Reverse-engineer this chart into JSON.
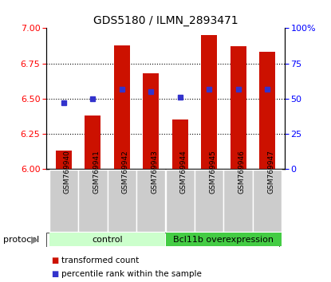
{
  "title": "GDS5180 / ILMN_2893471",
  "samples": [
    "GSM769940",
    "GSM769941",
    "GSM769942",
    "GSM769943",
    "GSM769944",
    "GSM769945",
    "GSM769946",
    "GSM769947"
  ],
  "bar_heights": [
    6.13,
    6.38,
    6.88,
    6.68,
    6.35,
    6.95,
    6.87,
    6.83
  ],
  "blue_y": [
    6.47,
    6.5,
    6.57,
    6.55,
    6.51,
    6.57,
    6.57,
    6.57
  ],
  "bar_bottom": 6.0,
  "ylim_left": [
    6.0,
    7.0
  ],
  "ylim_right": [
    0,
    100
  ],
  "yticks_left": [
    6.0,
    6.25,
    6.5,
    6.75,
    7.0
  ],
  "yticks_right": [
    0,
    25,
    50,
    75,
    100
  ],
  "bar_color": "#cc1100",
  "blue_color": "#3333cc",
  "group1_label": "control",
  "group2_label": "Bcl11b overexpression",
  "group1_color": "#ccffcc",
  "group2_color": "#44cc44",
  "protocol_label": "protocol",
  "legend_red": "transformed count",
  "legend_blue": "percentile rank within the sample",
  "background_color": "#ffffff",
  "grid_color": "#000000",
  "bar_width": 0.55,
  "group1_indices": [
    0,
    1,
    2,
    3
  ],
  "group2_indices": [
    4,
    5,
    6,
    7
  ],
  "xlabelbox_color": "#cccccc",
  "hgrid_vals": [
    6.25,
    6.5,
    6.75
  ]
}
